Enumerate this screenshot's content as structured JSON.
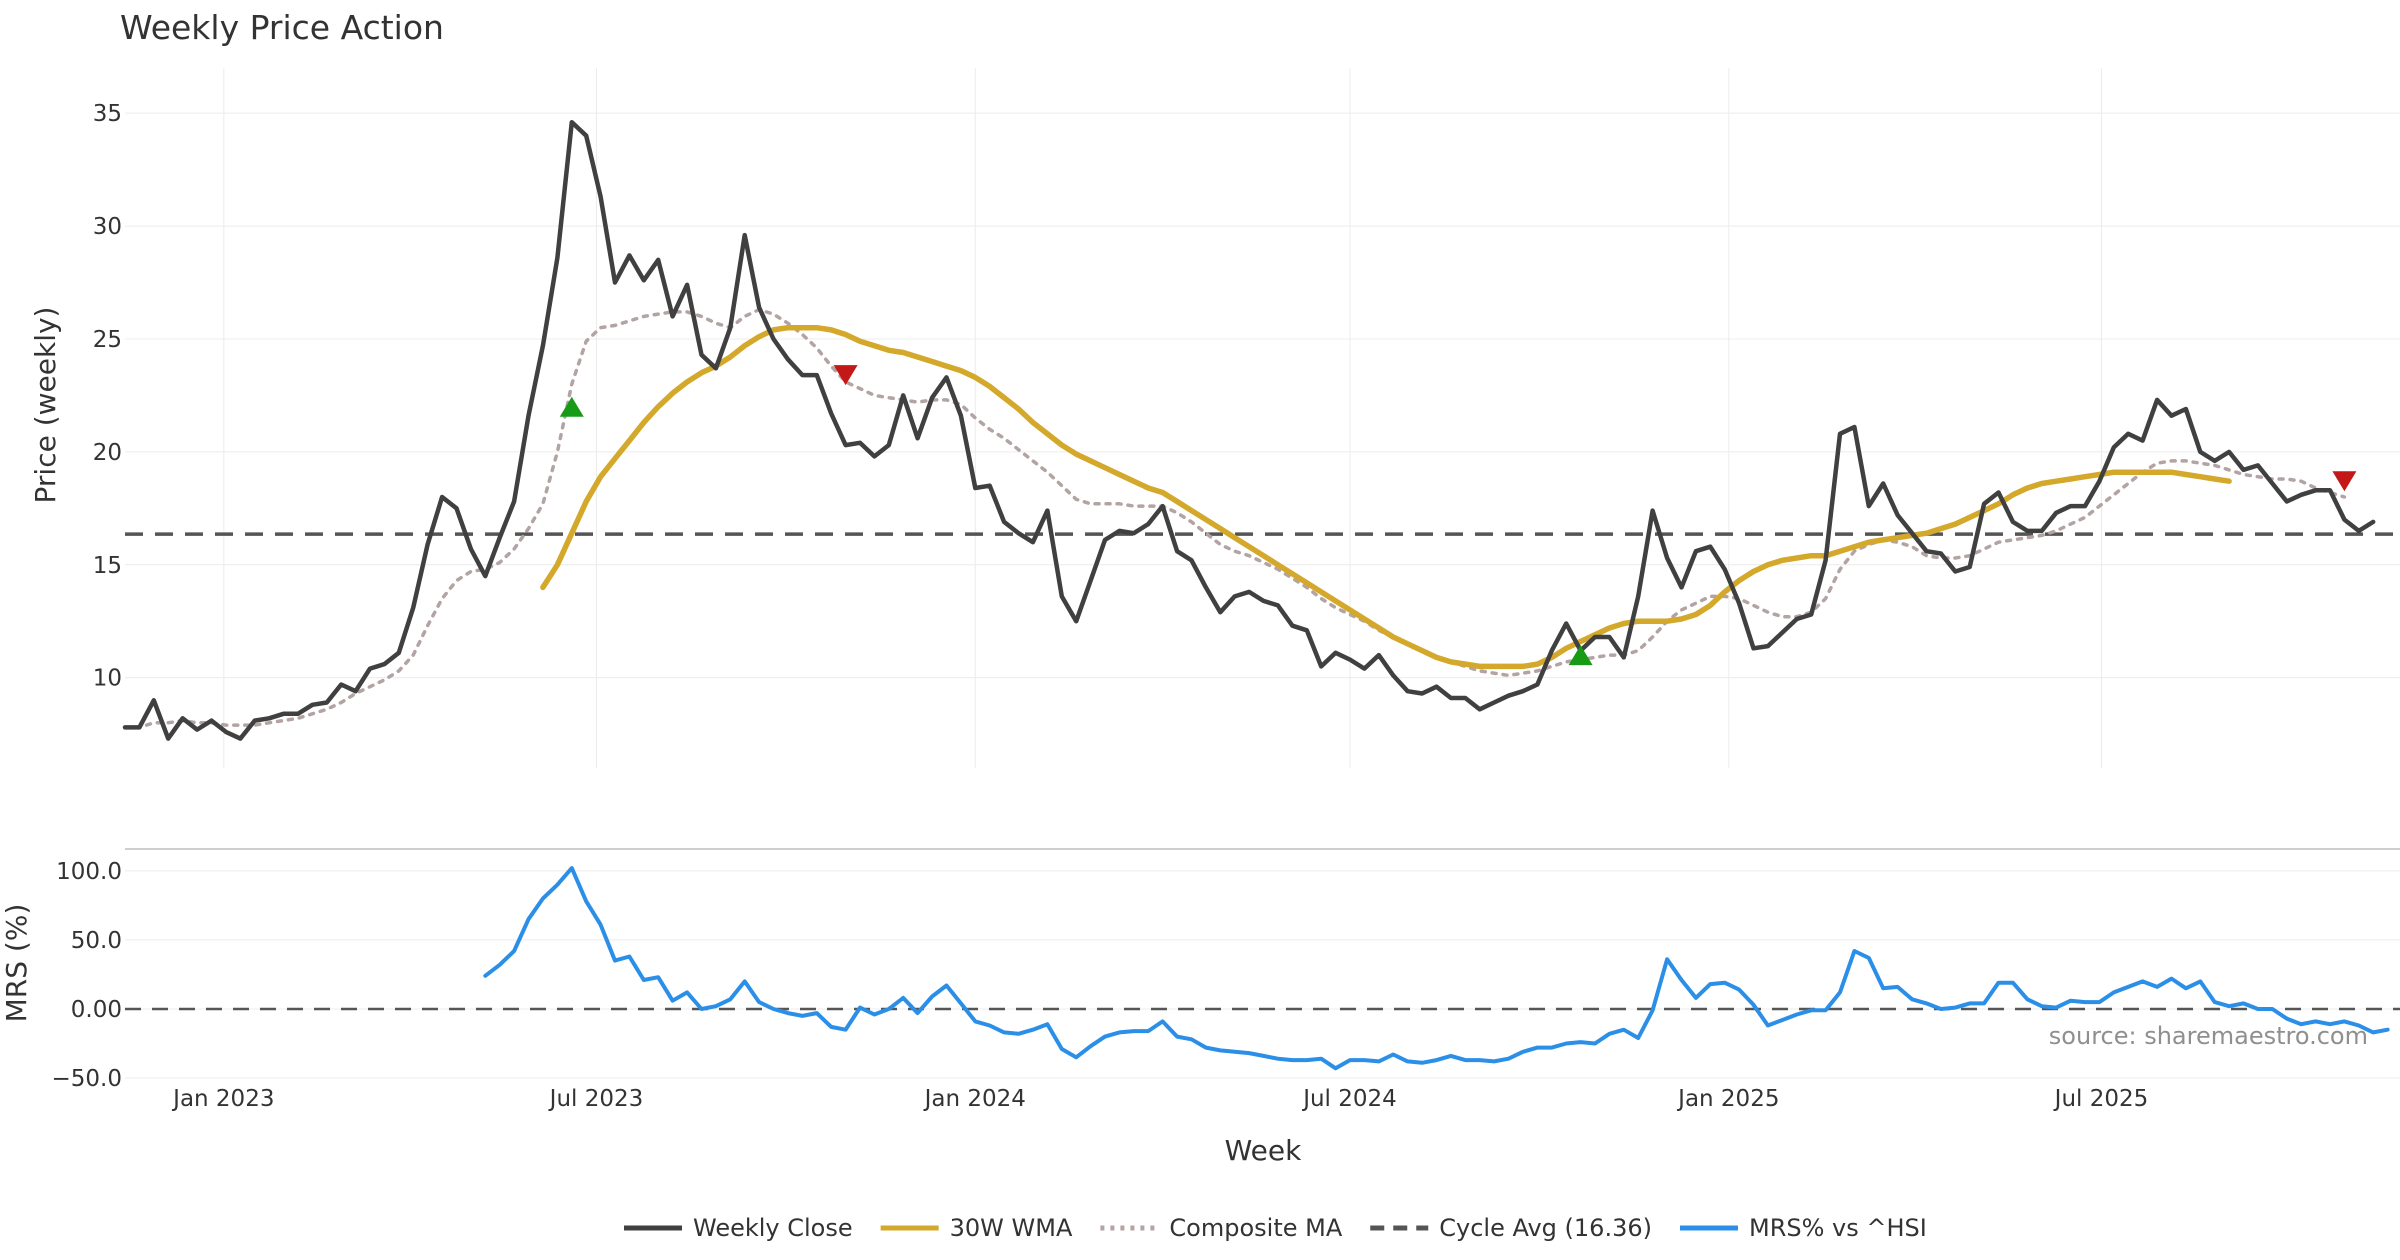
{
  "chart_data": [
    {
      "type": "line",
      "title": "Weekly Price Action",
      "xlabel": "",
      "ylabel": "Price (weekly)",
      "xlim": [
        "2022-11-14",
        "2025-11-23"
      ],
      "ylim": [
        6,
        37
      ],
      "x_ticks": [
        {
          "date": "2023-01-01",
          "label": "Jan 2023"
        },
        {
          "date": "2023-07-01",
          "label": "Jul 2023"
        },
        {
          "date": "2024-01-01",
          "label": "Jan 2024"
        },
        {
          "date": "2024-07-01",
          "label": "Jul 2024"
        },
        {
          "date": "2025-01-01",
          "label": "Jan 2025"
        },
        {
          "date": "2025-07-01",
          "label": "Jul 2025"
        }
      ],
      "y_ticks": [
        {
          "value": 10,
          "label": "10"
        },
        {
          "value": 15,
          "label": "15"
        },
        {
          "value": 20,
          "label": "20"
        },
        {
          "value": 25,
          "label": "25"
        },
        {
          "value": 30,
          "label": "30"
        },
        {
          "value": 35,
          "label": "35"
        }
      ],
      "x_start": "2022-11-14",
      "x_step_days": 7,
      "series": [
        {
          "name": "Weekly Close",
          "color": "#404040",
          "style": "solid",
          "values": [
            7.8,
            7.8,
            9.0,
            7.3,
            8.2,
            7.7,
            8.1,
            7.6,
            7.3,
            8.1,
            8.2,
            8.4,
            8.4,
            8.8,
            8.9,
            9.7,
            9.4,
            10.4,
            10.6,
            11.1,
            13.1,
            15.9,
            18.0,
            17.5,
            15.7,
            14.5,
            16.2,
            17.8,
            21.6,
            24.7,
            28.6,
            34.6,
            34.0,
            31.3,
            27.5,
            28.7,
            27.6,
            28.5,
            26.0,
            27.4,
            24.3,
            23.7,
            25.5,
            29.6,
            26.4,
            25.0,
            24.1,
            23.4,
            23.4,
            21.7,
            20.3,
            20.4,
            19.8,
            20.3,
            22.5,
            20.6,
            22.4,
            23.3,
            21.6,
            18.4,
            18.5,
            16.9,
            16.4,
            16.0,
            17.4,
            13.6,
            12.5,
            14.3,
            16.1,
            16.5,
            16.4,
            16.8,
            17.6,
            15.6,
            15.2,
            14.0,
            12.9,
            13.6,
            13.8,
            13.4,
            13.2,
            12.3,
            12.1,
            10.5,
            11.1,
            10.8,
            10.4,
            11.0,
            10.1,
            9.4,
            9.3,
            9.6,
            9.1,
            9.1,
            8.6,
            8.9,
            9.2,
            9.4,
            9.7,
            11.2,
            12.4,
            11.2,
            11.8,
            11.8,
            10.9,
            13.6,
            17.4,
            15.3,
            14.0,
            15.6,
            15.8,
            14.8,
            13.3,
            11.3,
            11.4,
            12.0,
            12.6,
            12.8,
            15.2,
            20.8,
            21.1,
            17.6,
            18.6,
            17.2,
            16.4,
            15.6,
            15.5,
            14.7,
            14.9,
            17.7,
            18.2,
            16.9,
            16.5,
            16.5,
            17.3,
            17.6,
            17.6,
            18.7,
            20.2,
            20.8,
            20.5,
            22.3,
            21.6,
            21.9,
            20.0,
            19.6,
            20.0,
            19.2,
            19.4,
            18.6,
            17.8,
            18.1,
            18.3,
            18.3,
            17.0,
            16.5,
            16.9
          ]
        },
        {
          "name": "30W WMA",
          "color": "#d4a82a",
          "style": "solid",
          "start_index": 29,
          "values": [
            14.0,
            15.0,
            16.4,
            17.8,
            18.9,
            19.7,
            20.5,
            21.3,
            22.0,
            22.6,
            23.1,
            23.5,
            23.8,
            24.2,
            24.7,
            25.1,
            25.4,
            25.5,
            25.5,
            25.5,
            25.4,
            25.2,
            24.9,
            24.7,
            24.5,
            24.4,
            24.2,
            24.0,
            23.8,
            23.6,
            23.3,
            22.9,
            22.4,
            21.9,
            21.3,
            20.8,
            20.3,
            19.9,
            19.6,
            19.3,
            19.0,
            18.7,
            18.4,
            18.2,
            17.8,
            17.4,
            17.0,
            16.6,
            16.2,
            15.8,
            15.4,
            15.0,
            14.6,
            14.2,
            13.8,
            13.4,
            13.0,
            12.6,
            12.2,
            11.8,
            11.5,
            11.2,
            10.9,
            10.7,
            10.6,
            10.5,
            10.5,
            10.5,
            10.5,
            10.6,
            10.9,
            11.3,
            11.6,
            11.9,
            12.2,
            12.4,
            12.5,
            12.5,
            12.5,
            12.6,
            12.8,
            13.2,
            13.8,
            14.3,
            14.7,
            15.0,
            15.2,
            15.3,
            15.4,
            15.4,
            15.6,
            15.8,
            16.0,
            16.1,
            16.2,
            16.3,
            16.4,
            16.6,
            16.8,
            17.1,
            17.4,
            17.7,
            18.1,
            18.4,
            18.6,
            18.7,
            18.8,
            18.9,
            19.0,
            19.1,
            19.1,
            19.1,
            19.1,
            19.1,
            19.0,
            18.9,
            18.8,
            18.7
          ]
        },
        {
          "name": "Composite MA",
          "color": "#b3a3a3",
          "style": "dotted",
          "values": [
            7.8,
            7.8,
            8.0,
            8.0,
            8.1,
            8.0,
            8.0,
            7.9,
            7.9,
            7.9,
            8.0,
            8.1,
            8.2,
            8.4,
            8.6,
            8.9,
            9.3,
            9.6,
            9.9,
            10.3,
            11.0,
            12.3,
            13.5,
            14.3,
            14.7,
            14.8,
            15.1,
            15.7,
            16.6,
            17.7,
            20.0,
            23.0,
            24.9,
            25.5,
            25.6,
            25.8,
            26.0,
            26.1,
            26.2,
            26.2,
            26.0,
            25.7,
            25.5,
            26.0,
            26.3,
            26.1,
            25.7,
            25.2,
            24.6,
            23.8,
            23.1,
            22.8,
            22.5,
            22.4,
            22.3,
            22.2,
            22.3,
            22.3,
            22.1,
            21.5,
            21.0,
            20.6,
            20.1,
            19.6,
            19.1,
            18.5,
            17.9,
            17.7,
            17.7,
            17.7,
            17.6,
            17.6,
            17.6,
            17.3,
            16.9,
            16.4,
            15.9,
            15.6,
            15.4,
            15.1,
            14.8,
            14.4,
            14.0,
            13.5,
            13.1,
            12.8,
            12.5,
            12.1,
            11.8,
            11.5,
            11.2,
            10.9,
            10.7,
            10.5,
            10.3,
            10.2,
            10.1,
            10.2,
            10.3,
            10.5,
            10.7,
            10.8,
            10.9,
            11.0,
            11.0,
            11.2,
            11.8,
            12.5,
            13.0,
            13.3,
            13.6,
            13.6,
            13.5,
            13.2,
            12.9,
            12.7,
            12.7,
            12.9,
            13.5,
            14.8,
            15.6,
            15.9,
            16.1,
            16.0,
            15.8,
            15.4,
            15.3,
            15.3,
            15.4,
            15.7,
            16.0,
            16.1,
            16.2,
            16.3,
            16.5,
            16.8,
            17.1,
            17.6,
            18.1,
            18.6,
            19.1,
            19.5,
            19.6,
            19.6,
            19.5,
            19.4,
            19.2,
            19.0,
            18.9,
            18.8,
            18.8,
            18.7,
            18.4,
            18.2,
            18.0
          ]
        },
        {
          "name": "Cycle Avg (16.36)",
          "color": "#555555",
          "style": "dashed",
          "constant": 16.36
        }
      ],
      "markers": [
        {
          "type": "buy",
          "direction": "up",
          "color": "#179b17",
          "index": 31,
          "value": 22.0
        },
        {
          "type": "sell",
          "direction": "down",
          "color": "#c41717",
          "index": 50,
          "value": 23.4
        },
        {
          "type": "buy",
          "direction": "up",
          "color": "#179b17",
          "index": 101,
          "value": 11.0
        },
        {
          "type": "sell",
          "direction": "down",
          "color": "#c41717",
          "index": 154,
          "value": 18.7
        }
      ]
    },
    {
      "type": "line",
      "title": "",
      "xlabel": "Week",
      "ylabel": "MRS (%)",
      "ylim": [
        -50,
        105
      ],
      "y_ticks": [
        {
          "value": 100,
          "label": "100.0"
        },
        {
          "value": 50,
          "label": "50.0"
        },
        {
          "value": 0,
          "label": "0.00"
        },
        {
          "value": -50,
          "label": "−50.0"
        }
      ],
      "zero_line": 0,
      "annotation": "source: sharemaestro.com",
      "series": [
        {
          "name": "MRS% vs ^HSI",
          "color": "#2b8fe8",
          "style": "solid",
          "start_index": 25,
          "values": [
            24,
            32,
            42,
            65,
            80,
            90,
            102,
            78,
            61,
            35,
            38,
            21,
            23,
            6,
            12,
            0,
            2,
            7,
            20,
            5,
            0,
            -3,
            -5,
            -3,
            -13,
            -15,
            1,
            -4,
            0,
            8,
            -3,
            9,
            17,
            4,
            -9,
            -12,
            -17,
            -18,
            -15,
            -11,
            -29,
            -35,
            -27,
            -20,
            -17,
            -16,
            -16,
            -9,
            -20,
            -22,
            -28,
            -30,
            -31,
            -32,
            -34,
            -36,
            -37,
            -37,
            -36,
            -43,
            -37,
            -37,
            -38,
            -33,
            -38,
            -39,
            -37,
            -34,
            -37,
            -37,
            -38,
            -36,
            -31,
            -28,
            -28,
            -25,
            -24,
            -25,
            -18,
            -15,
            -21,
            -1,
            36,
            21,
            8,
            18,
            19,
            14,
            3,
            -12,
            -8,
            -4,
            -1,
            -1,
            12,
            42,
            37,
            15,
            16,
            7,
            4,
            0,
            1,
            4,
            4,
            19,
            19,
            7,
            2,
            1,
            6,
            5,
            5,
            12,
            16,
            20,
            16,
            22,
            15,
            20,
            5,
            2,
            4,
            0,
            0,
            -7,
            -11,
            -9,
            -11,
            -9,
            -12,
            -17,
            -15
          ]
        }
      ]
    }
  ],
  "legend": [
    {
      "label": "Weekly Close",
      "color": "#404040",
      "style": "solid"
    },
    {
      "label": "30W WMA",
      "color": "#d4a82a",
      "style": "solid"
    },
    {
      "label": "Composite MA",
      "color": "#b3a3a3",
      "style": "dotted"
    },
    {
      "label": "Cycle Avg (16.36)",
      "color": "#555555",
      "style": "dashed"
    },
    {
      "label": "MRS% vs ^HSI",
      "color": "#2b8fe8",
      "style": "solid"
    }
  ]
}
